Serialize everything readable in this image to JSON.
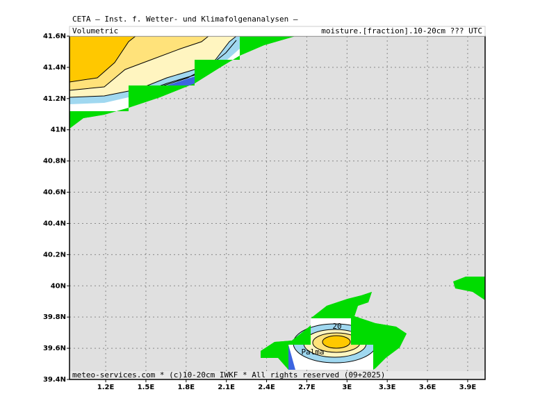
{
  "chart_data": {
    "type": "contour-map",
    "title": "CETA — Inst. f. Wetter- und Klimafolgenanalysen —",
    "subtitle_left": "Volumetric",
    "subtitle_right": "moisture.[fraction].10-20cm ??? UTC",
    "footer": "meteo-services.com * (c)10-20cm IWKF * All rights reserved (09+2025)",
    "place_label": "Palma",
    "contour_label": "20",
    "xlim": [
      0.93,
      4.03
    ],
    "ylim": [
      39.4,
      41.6
    ],
    "xticks": [
      {
        "value": 1.2,
        "label": "1.2E"
      },
      {
        "value": 1.5,
        "label": "1.5E"
      },
      {
        "value": 1.8,
        "label": "1.8E"
      },
      {
        "value": 2.1,
        "label": "2.1E"
      },
      {
        "value": 2.4,
        "label": "2.4E"
      },
      {
        "value": 2.7,
        "label": "2.7E"
      },
      {
        "value": 3,
        "label": "3E"
      },
      {
        "value": 3.3,
        "label": "3.3E"
      },
      {
        "value": 3.6,
        "label": "3.6E"
      },
      {
        "value": 3.9,
        "label": "3.9E"
      }
    ],
    "yticks": [
      {
        "value": 41.6,
        "label": "41.6N"
      },
      {
        "value": 41.4,
        "label": "41.4N"
      },
      {
        "value": 41.2,
        "label": "41.2N"
      },
      {
        "value": 41,
        "label": "41N"
      },
      {
        "value": 40.8,
        "label": "40.8N"
      },
      {
        "value": 40.6,
        "label": "40.6N"
      },
      {
        "value": 40.4,
        "label": "40.4N"
      },
      {
        "value": 40.2,
        "label": "40.2N"
      },
      {
        "value": 40,
        "label": "40N"
      },
      {
        "value": 39.8,
        "label": "39.8N"
      },
      {
        "value": 39.6,
        "label": "39.6N"
      },
      {
        "value": 39.4,
        "label": "39.4N"
      }
    ],
    "grid": true
  }
}
